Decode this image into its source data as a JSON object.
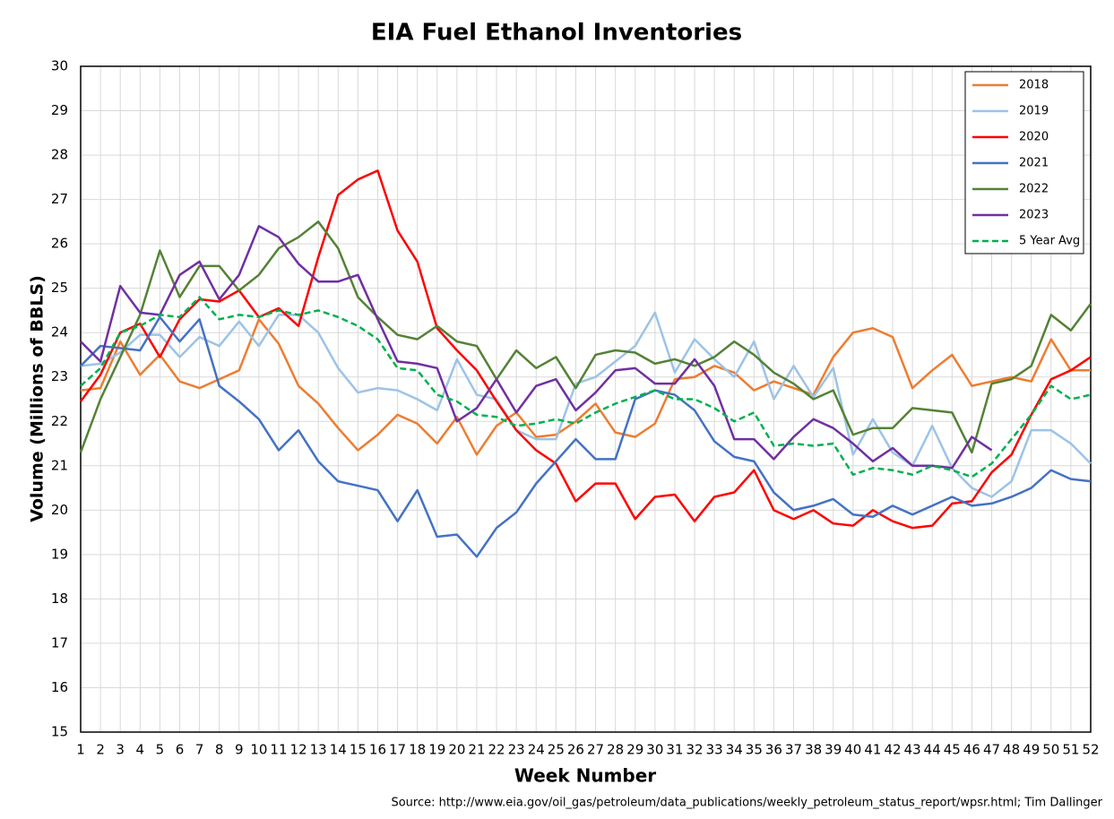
{
  "chart_data": {
    "type": "line",
    "title": "EIA Fuel Ethanol Inventories",
    "xlabel": "Week Number",
    "ylabel": "Volume (Millions of BBLS)",
    "source": "Source: http://www.eia.gov/oil_gas/petroleum/data_publications/weekly_petroleum_status_report/wpsr.html; Tim Dallinger",
    "x": [
      1,
      2,
      3,
      4,
      5,
      6,
      7,
      8,
      9,
      10,
      11,
      12,
      13,
      14,
      15,
      16,
      17,
      18,
      19,
      20,
      21,
      22,
      23,
      24,
      25,
      26,
      27,
      28,
      29,
      30,
      31,
      32,
      33,
      34,
      35,
      36,
      37,
      38,
      39,
      40,
      41,
      42,
      43,
      44,
      45,
      46,
      47,
      48,
      49,
      50,
      51,
      52
    ],
    "xlim": [
      1,
      52
    ],
    "xticks": [
      1,
      2,
      3,
      4,
      5,
      6,
      7,
      8,
      9,
      10,
      11,
      12,
      13,
      14,
      15,
      16,
      17,
      18,
      19,
      20,
      21,
      22,
      23,
      24,
      25,
      26,
      27,
      28,
      29,
      30,
      31,
      32,
      33,
      34,
      35,
      36,
      37,
      38,
      39,
      40,
      41,
      42,
      43,
      44,
      45,
      46,
      47,
      48,
      49,
      50,
      51,
      52
    ],
    "ylim": [
      15,
      30
    ],
    "yticks": [
      15,
      16,
      17,
      18,
      19,
      20,
      21,
      22,
      23,
      24,
      25,
      26,
      27,
      28,
      29,
      30
    ],
    "grid": true,
    "legend": "upper right",
    "series": [
      {
        "name": "2018",
        "color": "#ed7d31",
        "values": [
          22.7,
          22.75,
          23.8,
          23.05,
          23.5,
          22.9,
          22.75,
          22.95,
          23.15,
          24.3,
          23.75,
          22.8,
          22.4,
          21.85,
          21.35,
          21.7,
          22.15,
          21.95,
          21.5,
          22.1,
          21.25,
          21.9,
          22.2,
          21.65,
          21.7,
          22.0,
          22.4,
          21.75,
          21.65,
          21.95,
          22.95,
          23.0,
          23.25,
          23.1,
          22.7,
          22.9,
          22.75,
          22.6,
          23.45,
          24.0,
          24.1,
          23.9,
          22.75,
          23.15,
          23.5,
          22.8,
          22.9,
          23.0,
          22.9,
          23.85,
          23.15,
          23.15
        ]
      },
      {
        "name": "2019",
        "color": "#9dc3e6",
        "values": [
          23.25,
          23.3,
          23.55,
          23.95,
          23.95,
          23.45,
          23.9,
          23.7,
          24.25,
          23.7,
          24.4,
          24.4,
          24.0,
          23.2,
          22.65,
          22.75,
          22.7,
          22.5,
          22.25,
          23.4,
          22.6,
          22.5,
          21.8,
          21.6,
          21.6,
          22.85,
          23.0,
          23.35,
          23.7,
          24.45,
          23.1,
          23.85,
          23.4,
          23.0,
          23.8,
          22.5,
          23.25,
          22.55,
          23.2,
          21.25,
          22.05,
          21.3,
          21.0,
          21.9,
          20.95,
          20.5,
          20.3,
          20.65,
          21.8,
          21.8,
          21.5,
          21.05
        ]
      },
      {
        "name": "2020",
        "color": "#ff0000",
        "values": [
          22.45,
          23.05,
          24.0,
          24.2,
          23.45,
          24.3,
          24.75,
          24.7,
          24.95,
          24.35,
          24.55,
          24.15,
          25.7,
          27.1,
          27.45,
          27.65,
          26.3,
          25.6,
          24.1,
          23.6,
          23.15,
          22.45,
          21.8,
          21.35,
          21.05,
          20.2,
          20.6,
          20.6,
          19.8,
          20.3,
          20.35,
          19.75,
          20.3,
          20.4,
          20.9,
          20.0,
          19.8,
          20.0,
          19.7,
          19.65,
          20.0,
          19.75,
          19.6,
          19.65,
          20.15,
          20.2,
          20.85,
          21.25,
          22.15,
          22.95,
          23.15,
          23.45
        ]
      },
      {
        "name": "2021",
        "color": "#4472c4",
        "values": [
          23.25,
          23.7,
          23.65,
          23.6,
          24.35,
          23.8,
          24.3,
          22.8,
          22.45,
          22.05,
          21.35,
          21.8,
          21.1,
          20.65,
          20.55,
          20.45,
          19.75,
          20.45,
          19.4,
          19.45,
          18.95,
          19.6,
          19.95,
          20.6,
          21.1,
          21.6,
          21.15,
          21.15,
          22.5,
          22.7,
          22.6,
          22.25,
          21.55,
          21.2,
          21.1,
          20.4,
          20.0,
          20.1,
          20.25,
          19.9,
          19.85,
          20.1,
          19.9,
          20.1,
          20.3,
          20.1,
          20.15,
          20.3,
          20.5,
          20.9,
          20.7,
          20.65
        ]
      },
      {
        "name": "2022",
        "color": "#548235",
        "values": [
          21.3,
          22.5,
          23.45,
          24.4,
          25.85,
          24.8,
          25.5,
          25.5,
          24.95,
          25.3,
          25.9,
          26.15,
          26.5,
          25.9,
          24.8,
          24.35,
          23.95,
          23.85,
          24.15,
          23.8,
          23.7,
          22.95,
          23.6,
          23.2,
          23.45,
          22.75,
          23.5,
          23.6,
          23.55,
          23.3,
          23.4,
          23.25,
          23.45,
          23.8,
          23.5,
          23.1,
          22.85,
          22.5,
          22.7,
          21.7,
          21.85,
          21.85,
          22.3,
          22.25,
          22.2,
          21.3,
          22.85,
          22.95,
          23.25,
          24.4,
          24.05,
          24.65
        ]
      },
      {
        "name": "2023",
        "color": "#7030a0",
        "values": [
          23.8,
          23.35,
          25.05,
          24.45,
          24.4,
          25.3,
          25.6,
          24.75,
          25.3,
          26.4,
          26.15,
          25.55,
          25.15,
          25.15,
          25.3,
          24.3,
          23.35,
          23.3,
          23.2,
          22.0,
          22.3,
          22.95,
          22.2,
          22.8,
          22.95,
          22.25,
          22.65,
          23.15,
          23.2,
          22.85,
          22.85,
          23.4,
          22.8,
          21.6,
          21.6,
          21.15,
          21.65,
          22.05,
          21.85,
          21.5,
          21.1,
          21.4,
          21.0,
          21.0,
          20.95,
          21.65,
          21.35,
          null,
          null,
          null,
          null,
          null
        ]
      },
      {
        "name": "5 Year Avg",
        "color": "#00b050",
        "dashed": true,
        "values": [
          22.8,
          23.2,
          24.0,
          24.15,
          24.4,
          24.35,
          24.8,
          24.3,
          24.4,
          24.35,
          24.5,
          24.4,
          24.5,
          24.35,
          24.15,
          23.85,
          23.2,
          23.15,
          22.6,
          22.45,
          22.15,
          22.1,
          21.9,
          21.95,
          22.05,
          21.95,
          22.2,
          22.4,
          22.55,
          22.7,
          22.5,
          22.5,
          22.3,
          22.0,
          22.2,
          21.45,
          21.5,
          21.45,
          21.5,
          20.8,
          20.95,
          20.9,
          20.8,
          21.0,
          20.9,
          20.75,
          21.05,
          21.6,
          22.15,
          22.8,
          22.5,
          22.6
        ]
      }
    ]
  }
}
